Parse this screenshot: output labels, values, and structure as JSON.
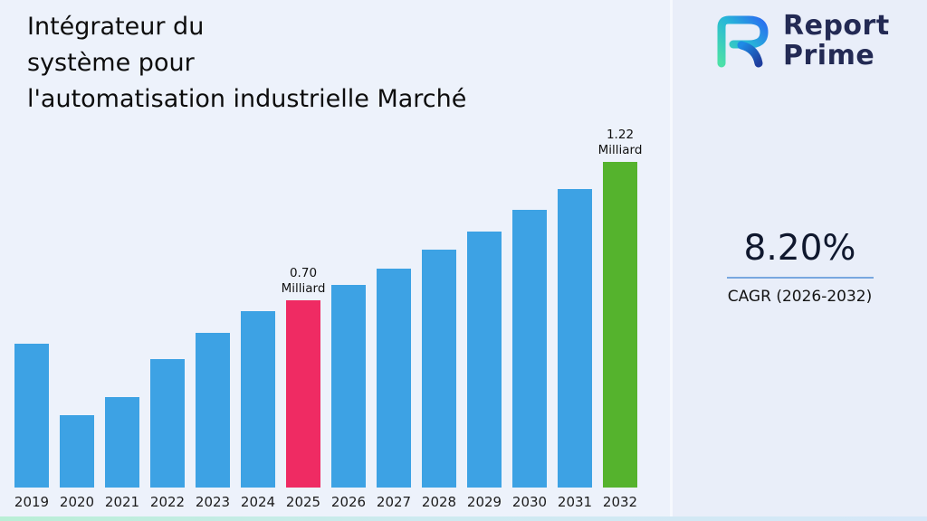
{
  "header": {
    "title_lines": [
      "Intégrateur du",
      "système pour",
      "l'automatisation industrielle Marché"
    ]
  },
  "logo": {
    "line1": "Report",
    "line2": "Prime"
  },
  "stats": {
    "value": "8.20%",
    "label": "CAGR (2026-2032)"
  },
  "colors": {
    "bar_default": "#3da2e4",
    "bar_highlight_2025": "#ef2b63",
    "bar_highlight_2032": "#55b32d",
    "cagr_underline": "#79a7e0",
    "logo_navy": "#232a54"
  },
  "chart_data": {
    "type": "bar",
    "title": "Intégrateur du système pour l'automatisation industrielle Marché",
    "categories": [
      "2019",
      "2020",
      "2021",
      "2022",
      "2023",
      "2024",
      "2025",
      "2026",
      "2027",
      "2028",
      "2029",
      "2030",
      "2031",
      "2032"
    ],
    "values": [
      0.54,
      0.27,
      0.34,
      0.48,
      0.58,
      0.66,
      0.7,
      0.76,
      0.82,
      0.89,
      0.96,
      1.04,
      1.12,
      1.22
    ],
    "unit": "Milliard",
    "xlabel": "",
    "ylabel": "",
    "ylim": [
      0,
      1.3
    ],
    "grid": false,
    "legend": false,
    "bar_colors": {
      "default": "#3da2e4",
      "2025": "#ef2b63",
      "2032": "#55b32d"
    },
    "annotations": [
      {
        "category": "2025",
        "lines": [
          "0.70",
          "Milliard"
        ]
      },
      {
        "category": "2032",
        "lines": [
          "1.22",
          "Milliard"
        ]
      }
    ]
  }
}
